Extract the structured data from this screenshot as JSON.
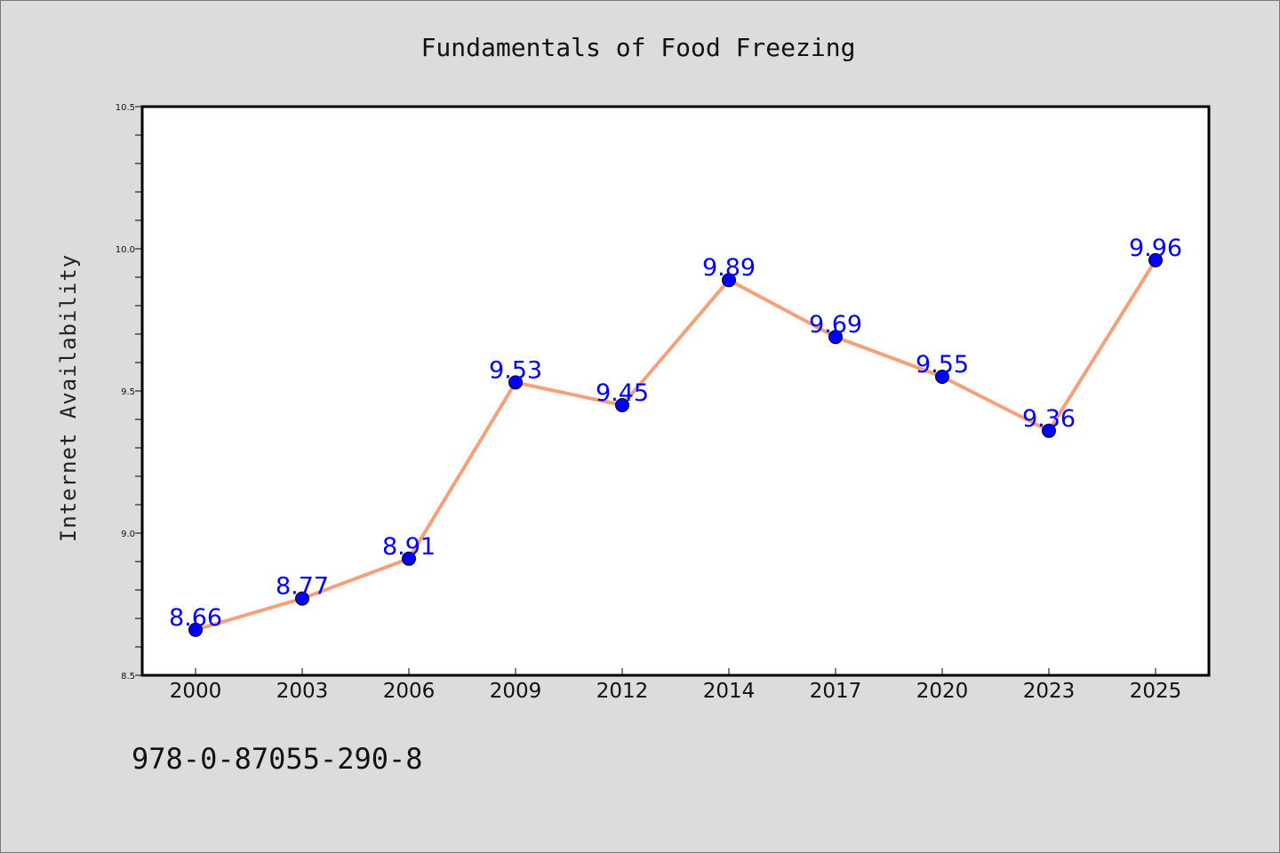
{
  "chart_data": {
    "type": "line",
    "title": "Fundamentals of Food Freezing",
    "xlabel": "",
    "ylabel": "Internet Availability",
    "categories": [
      "2000",
      "2003",
      "2006",
      "2009",
      "2012",
      "2014",
      "2017",
      "2020",
      "2023",
      "2025"
    ],
    "series": [
      {
        "values": [
          8.66,
          8.77,
          8.91,
          9.53,
          9.45,
          9.89,
          9.69,
          9.55,
          9.36,
          9.96
        ],
        "data_labels": [
          "8.66",
          "8.77",
          "8.91",
          "9.53",
          "9.45",
          "9.89",
          "9.69",
          "9.55",
          "9.36",
          "9.96"
        ],
        "line_color": "#f4a07a",
        "marker_color": "#0000ff"
      }
    ],
    "ylim": [
      8.5,
      10.5
    ],
    "yticks": [
      "8.5",
      "9.0",
      "9.5",
      "10.0",
      "10.5"
    ],
    "ytick_values": [
      8.5,
      9.0,
      9.5,
      10.0,
      10.5
    ],
    "grid": false,
    "legend": "none"
  },
  "footer": {
    "isbn": "978-0-87055-290-8"
  },
  "colors": {
    "background": "#dcdcdc",
    "plot_background": "#ffffff",
    "axis": "#000000"
  }
}
